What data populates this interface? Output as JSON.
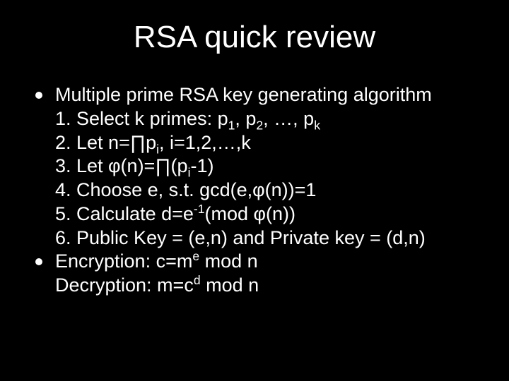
{
  "slide": {
    "background_color": "#000000",
    "text_color": "#ffffff",
    "font_family": "Arial",
    "title": {
      "text": "RSA quick review",
      "fontsize": 44,
      "align": "center"
    },
    "body_fontsize": 27,
    "bullet_color": "#ffffff",
    "bullets": [
      {
        "lead": "Multiple prime RSA key generating algorithm",
        "sublines": [
          {
            "prefix": "1. Select k primes: p",
            "sub1": "1",
            "mid1": ", p",
            "sub2": "2",
            "mid2": ", …, p",
            "sub3": "k",
            "suffix": ""
          },
          {
            "prefix": "2. Let n=∏p",
            "sub1": "i",
            "mid1": ", i=1,2,…,k",
            "sub2": "",
            "mid2": "",
            "sub3": "",
            "suffix": ""
          },
          {
            "prefix": "3. Let φ(n)=∏(p",
            "sub1": "i",
            "mid1": "-1)",
            "sub2": "",
            "mid2": "",
            "sub3": "",
            "suffix": ""
          },
          {
            "prefix": "4. Choose e, s.t. gcd(e,φ(n))=1",
            "sub1": "",
            "mid1": "",
            "sub2": "",
            "mid2": "",
            "sub3": "",
            "suffix": ""
          },
          {
            "prefix": "5. Calculate d=e",
            "sup1": "-1",
            "mid1": "(mod φ(n))",
            "sub1": "",
            "sub2": "",
            "mid2": "",
            "sub3": "",
            "suffix": ""
          },
          {
            "prefix": "6. Public Key = (e,n) and Private key = (d,n)",
            "sub1": "",
            "mid1": "",
            "sub2": "",
            "mid2": "",
            "sub3": "",
            "suffix": ""
          }
        ]
      },
      {
        "lead_prefix": "Encryption: c=m",
        "lead_sup": "e",
        "lead_suffix": " mod n",
        "sublines": [
          {
            "prefix": "Decryption: m=c",
            "sup1": "d",
            "mid1": " mod n",
            "sub1": "",
            "sub2": "",
            "mid2": "",
            "sub3": "",
            "suffix": ""
          }
        ]
      }
    ]
  }
}
